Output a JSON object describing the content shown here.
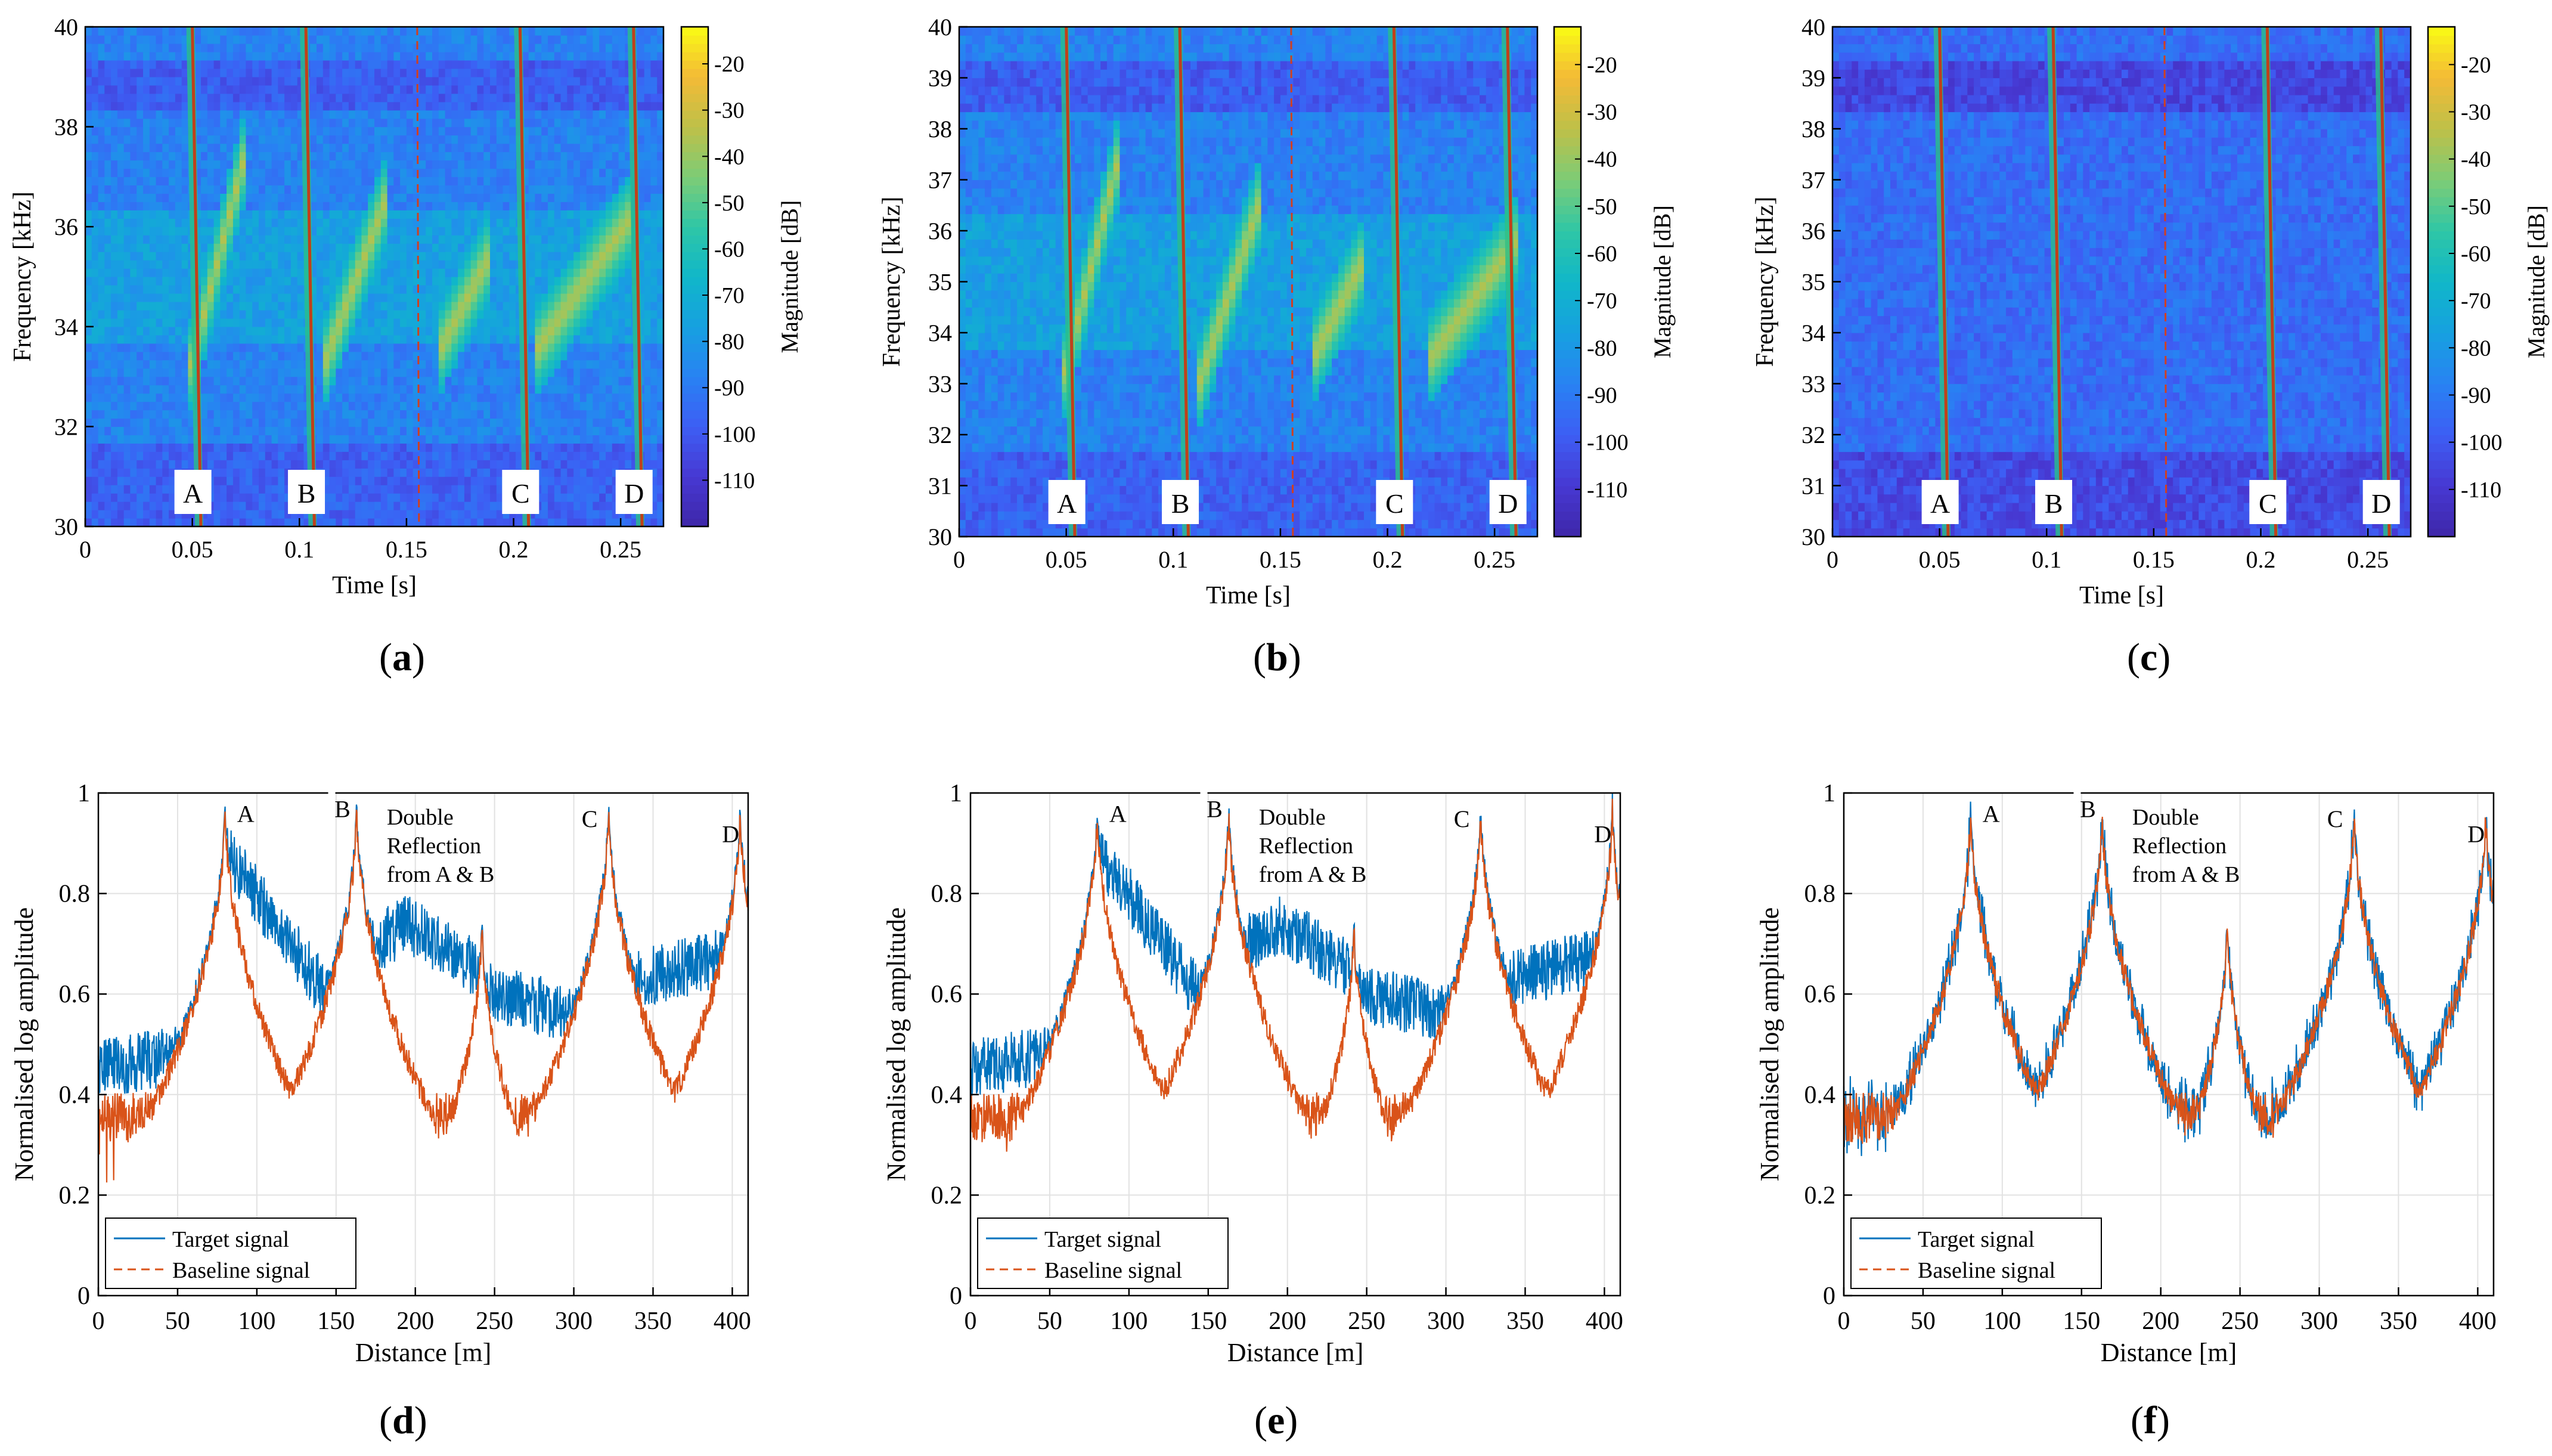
{
  "panels": [
    {
      "label_prefix": "(",
      "label_letter": "a",
      "label_suffix": ")"
    },
    {
      "label_prefix": "(",
      "label_letter": "b",
      "label_suffix": ")"
    },
    {
      "label_prefix": "(",
      "label_letter": "c",
      "label_suffix": ")"
    },
    {
      "label_prefix": "(",
      "label_letter": "d",
      "label_suffix": ")"
    },
    {
      "label_prefix": "(",
      "label_letter": "e",
      "label_suffix": ")"
    },
    {
      "label_prefix": "(",
      "label_letter": "f",
      "label_suffix": ")"
    }
  ],
  "chart_data": [
    {
      "type": "heatmap",
      "panel": "a",
      "xlabel": "Time [s]",
      "ylabel": "Frequency [kHz]",
      "xlim": [
        0,
        0.27
      ],
      "ylim": [
        30,
        40
      ],
      "xticks": [
        0,
        0.05,
        0.1,
        0.15,
        0.2,
        0.25
      ],
      "xtick_labels": [
        "0",
        "0.05",
        "0.1",
        "0.15",
        "0.2",
        "0.25"
      ],
      "yticks": [
        30,
        32,
        34,
        36,
        38,
        40
      ],
      "ytick_labels": [
        "30",
        "32",
        "34",
        "36",
        "38",
        "40"
      ],
      "colorbar": {
        "label": "Magnitude [dB]",
        "ticks": [
          -20,
          -30,
          -40,
          -50,
          -60,
          -70,
          -80,
          -90,
          -100,
          -110
        ],
        "tick_labels": [
          "-20",
          "-30",
          "-40",
          "-50",
          "-60",
          "-70",
          "-80",
          "-90",
          "-100",
          "-110"
        ],
        "range": [
          -120,
          -12
        ]
      },
      "markers": [
        {
          "t": 0.05,
          "label": "A"
        },
        {
          "t": 0.103,
          "label": "B"
        },
        {
          "t": 0.203,
          "label": "C"
        },
        {
          "t": 0.256,
          "label": "D"
        }
      ],
      "dashed_line_t": 0.155,
      "chirps": [
        [
          0.048,
          0.075,
          33.0,
          37.5
        ],
        [
          0.112,
          0.14,
          33.3,
          36.5
        ],
        [
          0.165,
          0.19,
          33.5,
          35.5
        ],
        [
          0.21,
          0.255,
          33.5,
          36.2
        ]
      ]
    },
    {
      "type": "heatmap",
      "panel": "b",
      "xlabel": "Time [s]",
      "ylabel": "Frequency [kHz]",
      "xlim": [
        0,
        0.27
      ],
      "ylim": [
        30,
        40
      ],
      "xticks": [
        0,
        0.05,
        0.1,
        0.15,
        0.2,
        0.25
      ],
      "xtick_labels": [
        "0",
        "0.05",
        "0.1",
        "0.15",
        "0.2",
        "0.25"
      ],
      "yticks": [
        30,
        31,
        32,
        33,
        34,
        35,
        36,
        37,
        38,
        39,
        40
      ],
      "ytick_labels": [
        "30",
        "31",
        "32",
        "33",
        "34",
        "35",
        "36",
        "37",
        "38",
        "39",
        "40"
      ],
      "colorbar": {
        "label": "Magnitude [dB]",
        "ticks": [
          -20,
          -30,
          -40,
          -50,
          -60,
          -70,
          -80,
          -90,
          -100,
          -110
        ],
        "tick_labels": [
          "-20",
          "-30",
          "-40",
          "-50",
          "-60",
          "-70",
          "-80",
          "-90",
          "-100",
          "-110"
        ],
        "range": [
          -120,
          -12
        ]
      },
      "markers": [
        {
          "t": 0.05,
          "label": "A"
        },
        {
          "t": 0.103,
          "label": "B"
        },
        {
          "t": 0.203,
          "label": "C"
        },
        {
          "t": 0.256,
          "label": "D"
        }
      ],
      "dashed_line_t": 0.155,
      "chirps": [
        [
          0.048,
          0.075,
          33.0,
          37.5
        ],
        [
          0.112,
          0.14,
          33.0,
          36.5
        ],
        [
          0.165,
          0.19,
          33.5,
          35.5
        ],
        [
          0.22,
          0.26,
          33.5,
          35.8
        ]
      ]
    },
    {
      "type": "heatmap",
      "panel": "c",
      "xlabel": "Time [s]",
      "ylabel": "Frequency [kHz]",
      "xlim": [
        0,
        0.27
      ],
      "ylim": [
        30,
        40
      ],
      "xticks": [
        0,
        0.05,
        0.1,
        0.15,
        0.2,
        0.25
      ],
      "xtick_labels": [
        "0",
        "0.05",
        "0.1",
        "0.15",
        "0.2",
        "0.25"
      ],
      "yticks": [
        30,
        31,
        32,
        33,
        34,
        35,
        36,
        37,
        38,
        39,
        40
      ],
      "ytick_labels": [
        "30",
        "31",
        "32",
        "33",
        "34",
        "35",
        "36",
        "37",
        "38",
        "39",
        "40"
      ],
      "colorbar": {
        "label": "Magnitude [dB]",
        "ticks": [
          -20,
          -30,
          -40,
          -50,
          -60,
          -70,
          -80,
          -90,
          -100,
          -110
        ],
        "tick_labels": [
          "-20",
          "-30",
          "-40",
          "-50",
          "-60",
          "-70",
          "-80",
          "-90",
          "-100",
          "-110"
        ],
        "range": [
          -120,
          -12
        ]
      },
      "markers": [
        {
          "t": 0.05,
          "label": "A"
        },
        {
          "t": 0.103,
          "label": "B"
        },
        {
          "t": 0.203,
          "label": "C"
        },
        {
          "t": 0.256,
          "label": "D"
        }
      ],
      "dashed_line_t": 0.155,
      "chirps": []
    },
    {
      "type": "line",
      "panel": "d",
      "xlabel": "Distance [m]",
      "ylabel": "Normalised log amplitude",
      "xlim": [
        0,
        410
      ],
      "ylim": [
        0,
        1
      ],
      "xticks": [
        0,
        50,
        100,
        150,
        200,
        250,
        300,
        350,
        400
      ],
      "xtick_labels": [
        "0",
        "50",
        "100",
        "150",
        "200",
        "250",
        "300",
        "350",
        "400"
      ],
      "yticks": [
        0,
        0.2,
        0.4,
        0.6,
        0.8,
        1
      ],
      "ytick_labels": [
        "0",
        "0.2",
        "0.4",
        "0.6",
        "0.8",
        "1"
      ],
      "grid": true,
      "legend_position": "bottom-left",
      "series": [
        {
          "name": "Target signal",
          "color": "#0072BD",
          "style": "solid"
        },
        {
          "name": "Baseline signal",
          "color": "#D95319",
          "style": "dashed"
        }
      ],
      "peaks": [
        {
          "x": 80,
          "label": "A"
        },
        {
          "x": 163,
          "label": "B"
        },
        {
          "x": 242,
          "label": ""
        },
        {
          "x": 322,
          "label": "C"
        },
        {
          "x": 405,
          "label": "D"
        }
      ],
      "target_profile": "elevated",
      "annotations": [
        {
          "text": "A",
          "x": 93,
          "y": 0.96
        },
        {
          "text": "B",
          "x": 154,
          "y": 0.97
        },
        {
          "text": "C",
          "x": 310,
          "y": 0.95
        },
        {
          "text": "D",
          "x": 399,
          "y": 0.92
        }
      ],
      "double_reflection_text": [
        "Double",
        "Reflection",
        "from A & B"
      ]
    },
    {
      "type": "line",
      "panel": "e",
      "xlabel": "Distance [m]",
      "ylabel": "Normalised log amplitude",
      "xlim": [
        0,
        410
      ],
      "ylim": [
        0,
        1
      ],
      "xticks": [
        0,
        50,
        100,
        150,
        200,
        250,
        300,
        350,
        400
      ],
      "xtick_labels": [
        "0",
        "50",
        "100",
        "150",
        "200",
        "250",
        "300",
        "350",
        "400"
      ],
      "yticks": [
        0,
        0.2,
        0.4,
        0.6,
        0.8,
        1
      ],
      "ytick_labels": [
        "0",
        "0.2",
        "0.4",
        "0.6",
        "0.8",
        "1"
      ],
      "grid": true,
      "legend_position": "bottom-left",
      "series": [
        {
          "name": "Target signal",
          "color": "#0072BD",
          "style": "solid"
        },
        {
          "name": "Baseline signal",
          "color": "#D95319",
          "style": "dashed"
        }
      ],
      "peaks": [
        {
          "x": 80,
          "label": "A"
        },
        {
          "x": 163,
          "label": "B"
        },
        {
          "x": 242,
          "label": ""
        },
        {
          "x": 322,
          "label": "C"
        },
        {
          "x": 405,
          "label": "D"
        }
      ],
      "target_profile": "elevated",
      "annotations": [
        {
          "text": "A",
          "x": 93,
          "y": 0.96
        },
        {
          "text": "B",
          "x": 154,
          "y": 0.97
        },
        {
          "text": "C",
          "x": 310,
          "y": 0.95
        },
        {
          "text": "D",
          "x": 399,
          "y": 0.92
        }
      ],
      "double_reflection_text": [
        "Double",
        "Reflection",
        "from A & B"
      ]
    },
    {
      "type": "line",
      "panel": "f",
      "xlabel": "Distance [m]",
      "ylabel": "Normalised log amplitude",
      "xlim": [
        0,
        410
      ],
      "ylim": [
        0,
        1
      ],
      "xticks": [
        0,
        50,
        100,
        150,
        200,
        250,
        300,
        350,
        400
      ],
      "xtick_labels": [
        "0",
        "50",
        "100",
        "150",
        "200",
        "250",
        "300",
        "350",
        "400"
      ],
      "yticks": [
        0,
        0.2,
        0.4,
        0.6,
        0.8,
        1
      ],
      "ytick_labels": [
        "0",
        "0.2",
        "0.4",
        "0.6",
        "0.8",
        "1"
      ],
      "grid": true,
      "legend_position": "bottom-left",
      "series": [
        {
          "name": "Target signal",
          "color": "#0072BD",
          "style": "solid"
        },
        {
          "name": "Baseline signal",
          "color": "#D95319",
          "style": "dashed"
        }
      ],
      "peaks": [
        {
          "x": 80,
          "label": "A"
        },
        {
          "x": 163,
          "label": "B"
        },
        {
          "x": 242,
          "label": ""
        },
        {
          "x": 322,
          "label": "C"
        },
        {
          "x": 405,
          "label": "D"
        }
      ],
      "target_profile": "matched",
      "annotations": [
        {
          "text": "A",
          "x": 93,
          "y": 0.96
        },
        {
          "text": "B",
          "x": 154,
          "y": 0.97
        },
        {
          "text": "C",
          "x": 310,
          "y": 0.95
        },
        {
          "text": "D",
          "x": 399,
          "y": 0.92
        }
      ],
      "double_reflection_text": [
        "Double",
        "Reflection",
        "from A & B"
      ]
    }
  ]
}
